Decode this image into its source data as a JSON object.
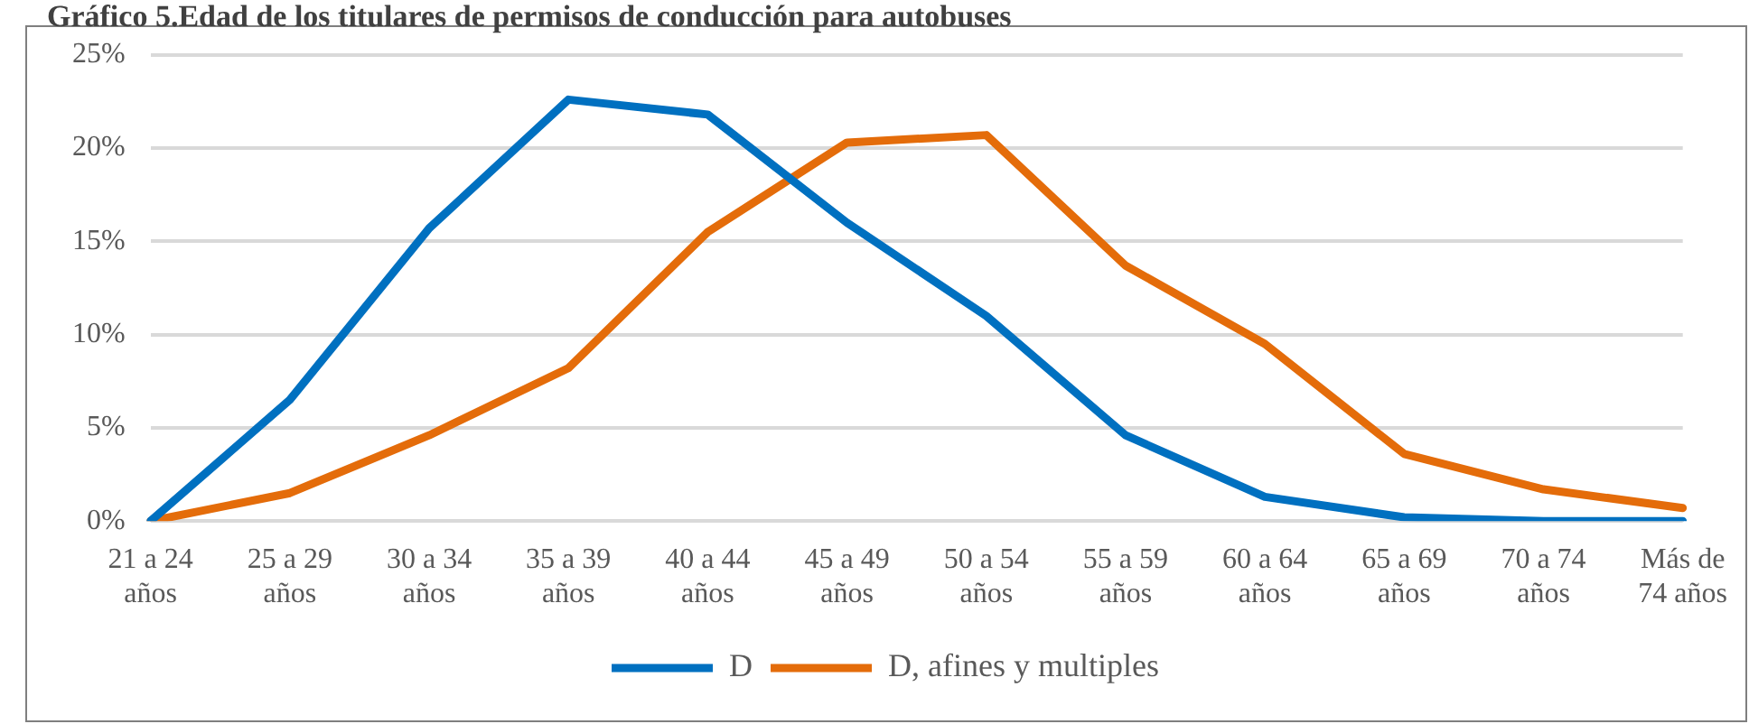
{
  "chart_data": {
    "type": "line",
    "title": "Gráfico 5.Edad de los titulares de permisos de conducción para autobuses",
    "categories": [
      "21 a 24 años",
      "25 a 29 años",
      "30 a 34 años",
      "35 a 39 años",
      "40 a 44 años",
      "45 a 49 años",
      "50 a 54 años",
      "55 a 59 años",
      "60 a 64 años",
      "65 a 69 años",
      "70 a 74 años",
      "Más de 74 años"
    ],
    "series": [
      {
        "name": "D",
        "color": "#0070c0",
        "values": [
          0,
          6.5,
          15.7,
          22.6,
          21.8,
          16,
          11,
          4.6,
          1.3,
          0.2,
          0,
          0
        ]
      },
      {
        "name": "D, afines y multiples",
        "color": "#e46c0a",
        "values": [
          0,
          1.5,
          4.6,
          8.2,
          15.5,
          20.3,
          20.7,
          13.7,
          9.5,
          3.6,
          1.7,
          0.7
        ]
      }
    ],
    "ylim": [
      0,
      25
    ],
    "yticks": [
      {
        "value": 0,
        "label": "0%"
      },
      {
        "value": 5,
        "label": "5%"
      },
      {
        "value": 10,
        "label": "10%"
      },
      {
        "value": 15,
        "label": "15%"
      },
      {
        "value": 20,
        "label": "20%"
      },
      {
        "value": 25,
        "label": "25%"
      }
    ],
    "grid": "y",
    "legend": "bottom",
    "marker": "none",
    "line_style": "solid"
  }
}
